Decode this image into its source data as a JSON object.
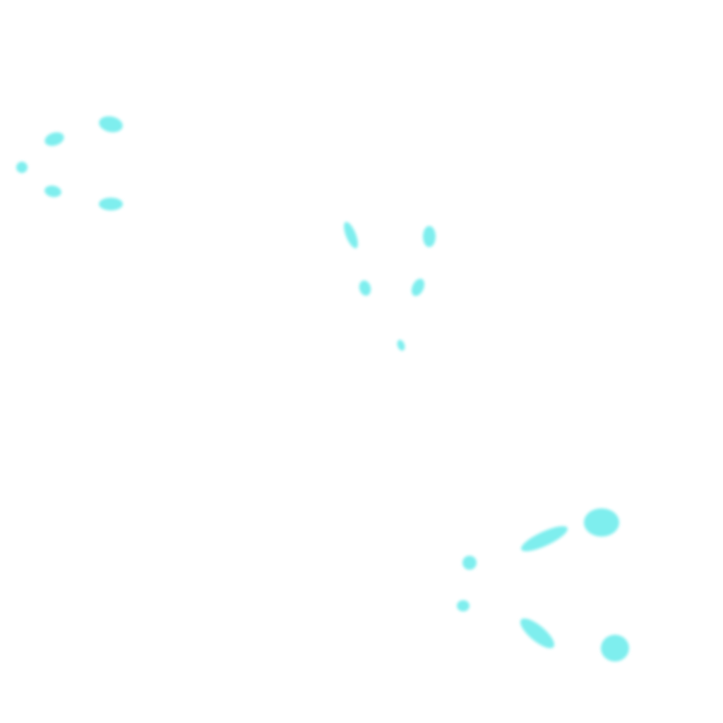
{
  "colors": {
    "background": "#ffffff",
    "mark": "#7eeeee"
  },
  "groups": [
    {
      "name": "cluster-top-left",
      "mark_count": 5
    },
    {
      "name": "cluster-center",
      "mark_count": 5
    },
    {
      "name": "cluster-bottom-right",
      "mark_count": 6
    }
  ]
}
